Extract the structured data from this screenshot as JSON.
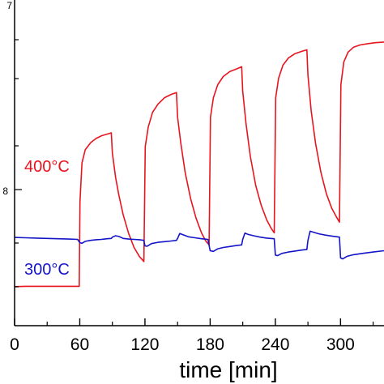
{
  "chart_data": {
    "type": "line",
    "xlabel": "time [min]",
    "xlim": [
      0,
      340
    ],
    "x_ticks": [
      0,
      60,
      120,
      180,
      240,
      300
    ],
    "y_scale": "log",
    "y_tick_labels": [
      "7",
      "8"
    ],
    "grid": false,
    "series": [
      {
        "name": "400°C",
        "color": "#e8141e",
        "points": [
          [
            0,
            0.12
          ],
          [
            10,
            0.121
          ],
          [
            20,
            0.121
          ],
          [
            30,
            0.121
          ],
          [
            40,
            0.121
          ],
          [
            50,
            0.121
          ],
          [
            59.5,
            0.121
          ],
          [
            60.2,
            0.38
          ],
          [
            62,
            0.5
          ],
          [
            65,
            0.54
          ],
          [
            70,
            0.562
          ],
          [
            75,
            0.575
          ],
          [
            80,
            0.583
          ],
          [
            85,
            0.588
          ],
          [
            89,
            0.592
          ],
          [
            90,
            0.53
          ],
          [
            93,
            0.455
          ],
          [
            96,
            0.4
          ],
          [
            100,
            0.34
          ],
          [
            105,
            0.283
          ],
          [
            110,
            0.24
          ],
          [
            115,
            0.212
          ],
          [
            119,
            0.197
          ],
          [
            120.3,
            0.55
          ],
          [
            123,
            0.61
          ],
          [
            127,
            0.655
          ],
          [
            132,
            0.68
          ],
          [
            138,
            0.7
          ],
          [
            144,
            0.71
          ],
          [
            149,
            0.716
          ],
          [
            150,
            0.64
          ],
          [
            153,
            0.56
          ],
          [
            157,
            0.47
          ],
          [
            162,
            0.39
          ],
          [
            167,
            0.33
          ],
          [
            172,
            0.285
          ],
          [
            176,
            0.26
          ],
          [
            179,
            0.248
          ],
          [
            180.3,
            0.64
          ],
          [
            183,
            0.7
          ],
          [
            187,
            0.74
          ],
          [
            192,
            0.765
          ],
          [
            198,
            0.78
          ],
          [
            204,
            0.788
          ],
          [
            209,
            0.795
          ],
          [
            210,
            0.72
          ],
          [
            213,
            0.62
          ],
          [
            217,
            0.52
          ],
          [
            222,
            0.43
          ],
          [
            227,
            0.37
          ],
          [
            232,
            0.325
          ],
          [
            236,
            0.3
          ],
          [
            239,
            0.285
          ],
          [
            240.3,
            0.7
          ],
          [
            243,
            0.76
          ],
          [
            247,
            0.8
          ],
          [
            252,
            0.822
          ],
          [
            258,
            0.835
          ],
          [
            264,
            0.842
          ],
          [
            269,
            0.847
          ],
          [
            270,
            0.77
          ],
          [
            273,
            0.66
          ],
          [
            277,
            0.56
          ],
          [
            282,
            0.47
          ],
          [
            287,
            0.405
          ],
          [
            292,
            0.36
          ],
          [
            296,
            0.335
          ],
          [
            299,
            0.318
          ],
          [
            300.3,
            0.74
          ],
          [
            303,
            0.81
          ],
          [
            307,
            0.84
          ],
          [
            312,
            0.855
          ],
          [
            318,
            0.862
          ],
          [
            325,
            0.866
          ],
          [
            332,
            0.869
          ],
          [
            340,
            0.871
          ]
        ]
      },
      {
        "name": "300°C",
        "color": "#1414c8",
        "points": [
          [
            0,
            0.271
          ],
          [
            10,
            0.27
          ],
          [
            20,
            0.269
          ],
          [
            30,
            0.268
          ],
          [
            40,
            0.267
          ],
          [
            50,
            0.266
          ],
          [
            58,
            0.265
          ],
          [
            60,
            0.255
          ],
          [
            62,
            0.253
          ],
          [
            65,
            0.259
          ],
          [
            70,
            0.262
          ],
          [
            75,
            0.264
          ],
          [
            80,
            0.265
          ],
          [
            85,
            0.267
          ],
          [
            89,
            0.268
          ],
          [
            90,
            0.272
          ],
          [
            93,
            0.276
          ],
          [
            96,
            0.274
          ],
          [
            100,
            0.268
          ],
          [
            105,
            0.266
          ],
          [
            110,
            0.265
          ],
          [
            115,
            0.264
          ],
          [
            119,
            0.262
          ],
          [
            120,
            0.245
          ],
          [
            122,
            0.244
          ],
          [
            126,
            0.252
          ],
          [
            132,
            0.256
          ],
          [
            138,
            0.258
          ],
          [
            144,
            0.26
          ],
          [
            149,
            0.262
          ],
          [
            150,
            0.268
          ],
          [
            152,
            0.283
          ],
          [
            155,
            0.279
          ],
          [
            160,
            0.273
          ],
          [
            166,
            0.27
          ],
          [
            172,
            0.267
          ],
          [
            178,
            0.265
          ],
          [
            180,
            0.23
          ],
          [
            183,
            0.228
          ],
          [
            187,
            0.236
          ],
          [
            192,
            0.24
          ],
          [
            198,
            0.243
          ],
          [
            204,
            0.246
          ],
          [
            209,
            0.248
          ],
          [
            210,
            0.265
          ],
          [
            212,
            0.284
          ],
          [
            215,
            0.28
          ],
          [
            220,
            0.276
          ],
          [
            226,
            0.272
          ],
          [
            232,
            0.269
          ],
          [
            239,
            0.267
          ],
          [
            240,
            0.217
          ],
          [
            242,
            0.215
          ],
          [
            246,
            0.222
          ],
          [
            252,
            0.226
          ],
          [
            258,
            0.229
          ],
          [
            264,
            0.232
          ],
          [
            269,
            0.234
          ],
          [
            270,
            0.262
          ],
          [
            272,
            0.29
          ],
          [
            275,
            0.287
          ],
          [
            280,
            0.282
          ],
          [
            286,
            0.278
          ],
          [
            292,
            0.275
          ],
          [
            299,
            0.272
          ],
          [
            300,
            0.208
          ],
          [
            302,
            0.205
          ],
          [
            306,
            0.213
          ],
          [
            312,
            0.218
          ],
          [
            320,
            0.222
          ],
          [
            330,
            0.226
          ],
          [
            340,
            0.23
          ]
        ]
      }
    ]
  }
}
